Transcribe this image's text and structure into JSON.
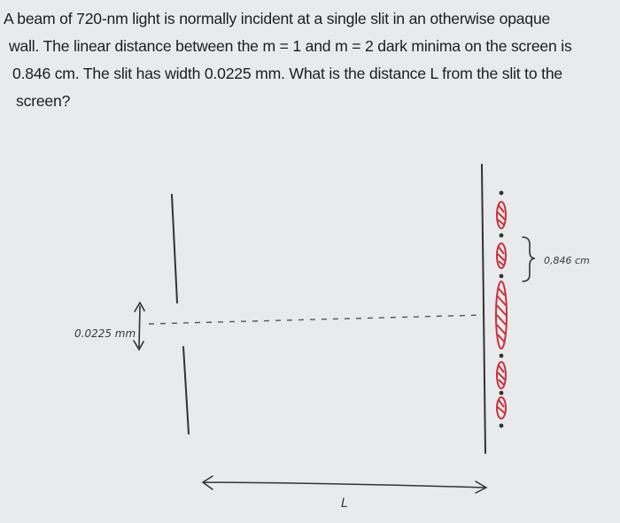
{
  "question": {
    "line1": "A beam of 720-nm light is normally incident at a single slit in an otherwise opaque",
    "line2": "wall. The linear distance between the m = 1 and m = 2 dark minima on the screen is",
    "line3": "0.846 cm. The slit has width 0.0225 mm. What is the distance L from the slit to the",
    "line4": "screen?"
  },
  "sketch": {
    "slit_width_label": "0.0225 mm",
    "minima_distance_label": "0,846 cm",
    "distance_label": "L",
    "fringe_color": "#c8323a",
    "ink_color": "#333333"
  }
}
